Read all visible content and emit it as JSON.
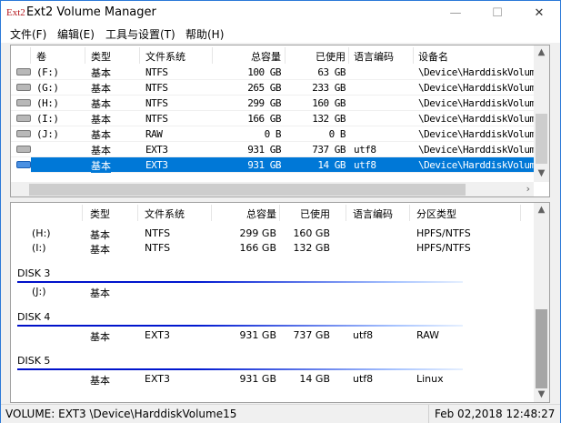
{
  "window": {
    "title": "Ext2 Volume Manager",
    "logo_text": "Ext2",
    "minimize": "—",
    "maximize": "☐",
    "close": "✕"
  },
  "menu": [
    "文件(F)",
    "编辑(E)",
    "工具与设置(T)",
    "帮助(H)"
  ],
  "top_table": {
    "columns": [
      "卷",
      "类型",
      "文件系统",
      "总容量",
      "已使用",
      "语言编码",
      "设备名"
    ],
    "rows": [
      {
        "icon": "hard-drive-icon",
        "vol": "(F:)",
        "type": "基本",
        "fs": "NTFS",
        "total": "100 GB",
        "used": "63 GB",
        "enc": "",
        "dev": "\\Device\\HarddiskVolum"
      },
      {
        "icon": "hard-drive-icon",
        "vol": "(G:)",
        "type": "基本",
        "fs": "NTFS",
        "total": "265 GB",
        "used": "233 GB",
        "enc": "",
        "dev": "\\Device\\HarddiskVolum"
      },
      {
        "icon": "hard-drive-icon",
        "vol": "(H:)",
        "type": "基本",
        "fs": "NTFS",
        "total": "299 GB",
        "used": "160 GB",
        "enc": "",
        "dev": "\\Device\\HarddiskVolum"
      },
      {
        "icon": "hard-drive-icon",
        "vol": "(I:)",
        "type": "基本",
        "fs": "NTFS",
        "total": "166 GB",
        "used": "132 GB",
        "enc": "",
        "dev": "\\Device\\HarddiskVolum"
      },
      {
        "icon": "usb-drive-icon",
        "vol": "(J:)",
        "type": "基本",
        "fs": "RAW",
        "total": "0 B",
        "used": "0 B",
        "enc": "",
        "dev": "\\Device\\HarddiskVolum"
      },
      {
        "icon": "hard-drive-icon",
        "vol": "",
        "type": "基本",
        "fs": "EXT3",
        "total": "931 GB",
        "used": "737 GB",
        "enc": "utf8",
        "dev": "\\Device\\HarddiskVolum"
      },
      {
        "icon": "hard-drive-blue-icon",
        "vol": "",
        "type": "基本",
        "fs": "EXT3",
        "total": "931 GB",
        "used": "14 GB",
        "enc": "utf8",
        "dev": "\\Device\\HarddiskVolum",
        "selected": true
      }
    ]
  },
  "bottom_table": {
    "columns": [
      "类型",
      "文件系统",
      "总容量",
      "已使用",
      "语言编码",
      "分区类型"
    ],
    "h_row": {
      "vol": "(H:)",
      "type": "基本",
      "fs": "NTFS",
      "total": "299 GB",
      "used": "160 GB",
      "enc": "",
      "part": "HPFS/NTFS"
    },
    "i_row": {
      "vol": "(I:)",
      "type": "基本",
      "fs": "NTFS",
      "total": "166 GB",
      "used": "132 GB",
      "enc": "",
      "part": "HPFS/NTFS"
    },
    "disk3": {
      "label": "DISK 3",
      "vol": "(J:)",
      "type": "基本"
    },
    "disk4": {
      "label": "DISK 4",
      "type": "基本",
      "fs": "EXT3",
      "total": "931 GB",
      "used": "737 GB",
      "enc": "utf8",
      "part": "RAW"
    },
    "disk5": {
      "label": "DISK 5",
      "type": "基本",
      "fs": "EXT3",
      "total": "931 GB",
      "used": "14 GB",
      "enc": "utf8",
      "part": "Linux"
    }
  },
  "status": {
    "left": "VOLUME:  EXT3 \\Device\\HarddiskVolume15",
    "right": "Feb 02,2018 12:48:27"
  }
}
